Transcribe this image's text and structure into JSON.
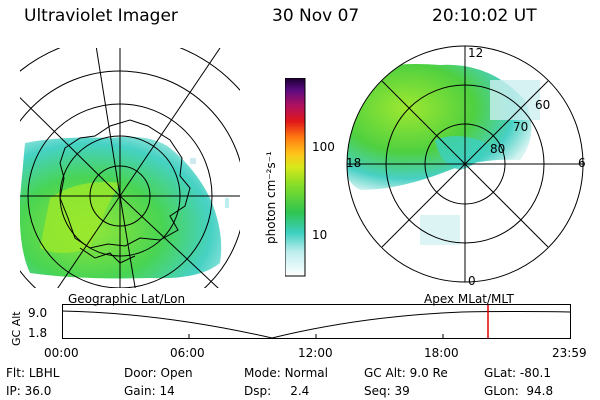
{
  "header": {
    "instrument": "Ultraviolet Imager",
    "date": "30 Nov 07",
    "time": "20:10:02 UT"
  },
  "colorbar": {
    "unit_label": "photon cm⁻²s⁻¹",
    "tick_labels": [
      "100",
      "10"
    ]
  },
  "polar": {
    "mlt_labels": {
      "top": "12",
      "left": "18",
      "right": "6",
      "bottom": "0"
    },
    "lat_labels": [
      "60",
      "70",
      "80"
    ]
  },
  "map_titles": {
    "left": "Geographic Lat/Lon",
    "right": "Apex MLat/MLT"
  },
  "altitude_plot": {
    "ylabel": "GC Alt",
    "ytick_top": "9.0",
    "ytick_bottom": "1.8",
    "xticks": [
      "00:00",
      "06:00",
      "12:00",
      "18:00",
      "23:59"
    ],
    "marker_color": "#e00000"
  },
  "info": {
    "row1": [
      {
        "key": "Flt:",
        "value": "LBHL"
      },
      {
        "key": "Door:",
        "value": "Open"
      },
      {
        "key": "Mode:",
        "value": "Normal"
      },
      {
        "key": "GC Alt:",
        "value": "9.0 Re"
      },
      {
        "key": "GLat:",
        "value": "-80.1"
      }
    ],
    "row2": [
      {
        "key": "IP:",
        "value": "36.0"
      },
      {
        "key": "Gain:",
        "value": "14"
      },
      {
        "key": "Dsp:",
        "value": "2.4"
      },
      {
        "key": "Seq:",
        "value": "39"
      },
      {
        "key": "GLon:",
        "value": "94.8"
      }
    ]
  }
}
